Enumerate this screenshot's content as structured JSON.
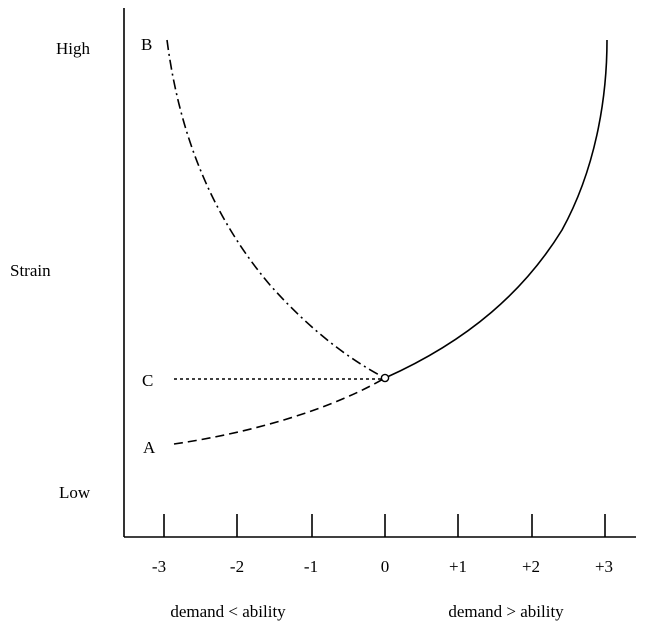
{
  "chart_data": {
    "type": "line",
    "title": "",
    "ylabel": "Strain",
    "y_levels": {
      "high": "High",
      "low": "Low"
    },
    "x_ticks": [
      "-3",
      "-2",
      "-1",
      "0",
      "+1",
      "+2",
      "+3"
    ],
    "x_region_labels": [
      "demand < ability",
      "demand > ability"
    ],
    "xlim": [
      -3,
      3
    ],
    "curves": [
      {
        "label": "",
        "style": "solid",
        "note": "continuation of A above point 0"
      },
      {
        "label": "A",
        "style": "dashed"
      },
      {
        "label": "B",
        "style": "dash-dot"
      },
      {
        "label": "C",
        "style": "dotted"
      }
    ]
  }
}
